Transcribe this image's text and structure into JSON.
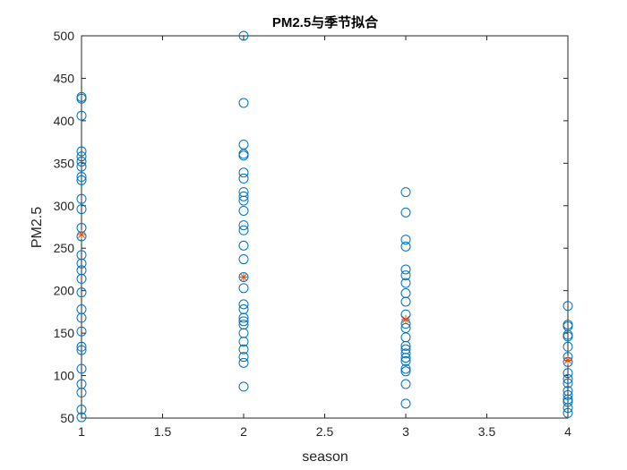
{
  "chart_data": {
    "type": "scatter",
    "title": "PM2.5与季节拟合",
    "xlabel": "season",
    "ylabel": "PM2.5",
    "xlim": [
      1,
      4
    ],
    "ylim": [
      50,
      500
    ],
    "xticks": [
      "1",
      "1.5",
      "2",
      "2.5",
      "3",
      "3.5",
      "4"
    ],
    "xtick_values": [
      1,
      1.5,
      2,
      2.5,
      3,
      3.5,
      4
    ],
    "yticks": [
      "50",
      "100",
      "150",
      "200",
      "250",
      "300",
      "350",
      "400",
      "450",
      "500"
    ],
    "ytick_values": [
      50,
      100,
      150,
      200,
      250,
      300,
      350,
      400,
      450,
      500
    ],
    "grid": false,
    "box": true,
    "series": [
      {
        "marker": "circle",
        "color": "#0072BD",
        "points": [
          [
            1,
            428
          ],
          [
            1,
            426
          ],
          [
            1,
            406
          ],
          [
            1,
            364
          ],
          [
            1,
            358
          ],
          [
            1,
            352
          ],
          [
            1,
            346
          ],
          [
            1,
            334
          ],
          [
            1,
            330
          ],
          [
            1,
            308
          ],
          [
            1,
            296
          ],
          [
            1,
            274
          ],
          [
            1,
            264
          ],
          [
            1,
            242
          ],
          [
            1,
            232
          ],
          [
            1,
            224
          ],
          [
            1,
            214
          ],
          [
            1,
            198
          ],
          [
            1,
            178
          ],
          [
            1,
            168
          ],
          [
            1,
            152
          ],
          [
            1,
            134
          ],
          [
            1,
            130
          ],
          [
            1,
            108
          ],
          [
            1,
            90
          ],
          [
            1,
            80
          ],
          [
            1,
            60
          ],
          [
            1,
            51
          ],
          [
            2,
            500
          ],
          [
            2,
            421
          ],
          [
            2,
            372
          ],
          [
            2,
            361
          ],
          [
            2,
            359
          ],
          [
            2,
            339
          ],
          [
            2,
            332
          ],
          [
            2,
            316
          ],
          [
            2,
            311
          ],
          [
            2,
            306
          ],
          [
            2,
            294
          ],
          [
            2,
            277
          ],
          [
            2,
            271
          ],
          [
            2,
            253
          ],
          [
            2,
            237
          ],
          [
            2,
            216
          ],
          [
            2,
            203
          ],
          [
            2,
            184
          ],
          [
            2,
            178
          ],
          [
            2,
            168
          ],
          [
            2,
            164
          ],
          [
            2,
            160
          ],
          [
            2,
            150
          ],
          [
            2,
            140
          ],
          [
            2,
            131
          ],
          [
            2,
            122
          ],
          [
            2,
            115
          ],
          [
            2,
            87
          ],
          [
            3,
            316
          ],
          [
            3,
            292
          ],
          [
            3,
            260
          ],
          [
            3,
            252
          ],
          [
            3,
            225
          ],
          [
            3,
            218
          ],
          [
            3,
            209
          ],
          [
            3,
            197
          ],
          [
            3,
            187
          ],
          [
            3,
            172
          ],
          [
            3,
            161
          ],
          [
            3,
            156
          ],
          [
            3,
            145
          ],
          [
            3,
            135
          ],
          [
            3,
            131
          ],
          [
            3,
            126
          ],
          [
            3,
            121
          ],
          [
            3,
            117
          ],
          [
            3,
            108
          ],
          [
            3,
            105
          ],
          [
            3,
            90
          ],
          [
            3,
            67
          ],
          [
            4,
            182
          ],
          [
            4,
            160
          ],
          [
            4,
            158
          ],
          [
            4,
            148
          ],
          [
            4,
            146
          ],
          [
            4,
            134
          ],
          [
            4,
            122
          ],
          [
            4,
            116
          ],
          [
            4,
            103
          ],
          [
            4,
            96
          ],
          [
            4,
            91
          ],
          [
            4,
            82
          ],
          [
            4,
            77
          ],
          [
            4,
            72
          ],
          [
            4,
            69
          ],
          [
            4,
            62
          ],
          [
            4,
            56
          ]
        ]
      },
      {
        "marker": "asterisk",
        "color": "#D95319",
        "points": [
          [
            1,
            266
          ],
          [
            2,
            216
          ],
          [
            3,
            166
          ],
          [
            4,
            118
          ]
        ]
      }
    ]
  }
}
